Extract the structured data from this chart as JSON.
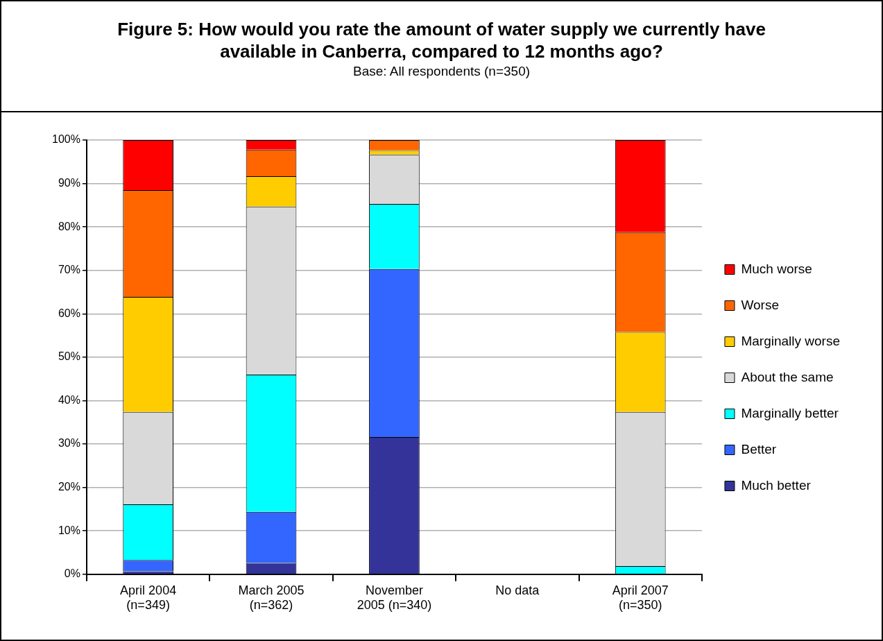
{
  "chart_data": {
    "type": "bar",
    "title": "Figure 5: How would you rate the amount of water supply we currently have available in Canberra, compared to 12 months ago?",
    "subtitle": "Base: All respondents (n=350)",
    "categories": [
      "April 2004\n(n=349)",
      "March 2005\n(n=362)",
      "November\n2005 (n=340)",
      "No data",
      "April 2007\n(n=350)"
    ],
    "stacked": true,
    "series": [
      {
        "name": "Much better",
        "color": "#333399",
        "values": [
          0.7,
          2.6,
          31.6,
          null,
          0
        ]
      },
      {
        "name": "Better",
        "color": "#3366ff",
        "values": [
          2.6,
          11.8,
          38.7,
          null,
          0
        ]
      },
      {
        "name": "Marginally better",
        "color": "#00ffff",
        "values": [
          12.8,
          31.6,
          15.0,
          null,
          1.9
        ]
      },
      {
        "name": "About the same",
        "color": "#d9d9d9",
        "values": [
          21.3,
          38.7,
          11.4,
          null,
          35.5
        ]
      },
      {
        "name": "Marginally worse",
        "color": "#ffcc00",
        "values": [
          26.5,
          7.0,
          1.0,
          null,
          18.4
        ]
      },
      {
        "name": "Worse",
        "color": "#ff6600",
        "values": [
          24.6,
          6.1,
          2.3,
          null,
          23.0
        ]
      },
      {
        "name": "Much worse",
        "color": "#ff0000",
        "values": [
          11.5,
          2.2,
          0,
          null,
          21.2
        ]
      }
    ],
    "ylim": [
      0,
      100
    ],
    "yticks": [
      {
        "value": 0,
        "label": "0%"
      },
      {
        "value": 10,
        "label": "10%"
      },
      {
        "value": 20,
        "label": "20%"
      },
      {
        "value": 30,
        "label": "30%"
      },
      {
        "value": 40,
        "label": "40%"
      },
      {
        "value": 50,
        "label": "50%"
      },
      {
        "value": 60,
        "label": "60%"
      },
      {
        "value": 70,
        "label": "70%"
      },
      {
        "value": 80,
        "label": "80%"
      },
      {
        "value": 90,
        "label": "90%"
      },
      {
        "value": 100,
        "label": "100%"
      }
    ],
    "grid": "y",
    "legend": "right"
  }
}
